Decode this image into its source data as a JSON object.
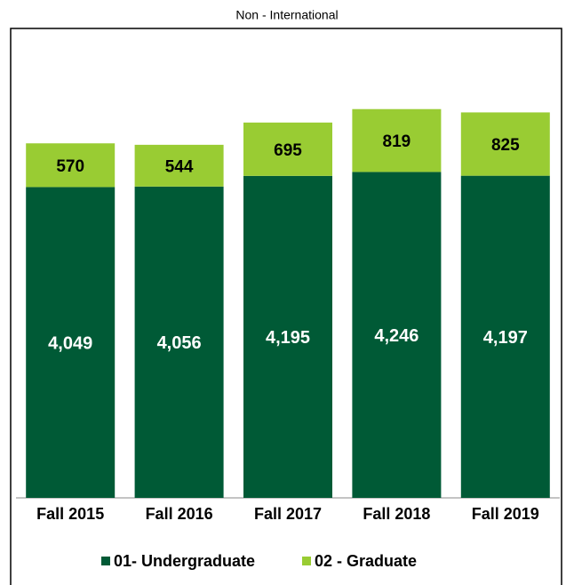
{
  "chart_data": {
    "type": "stacked_bar",
    "title": "Non - International",
    "categories": [
      "Fall 2015",
      "Fall 2016",
      "Fall 2017",
      "Fall 2018",
      "Fall 2019"
    ],
    "series": [
      {
        "name": "01- Undergraduate",
        "color": "#005a36",
        "values": [
          4049,
          4056,
          4195,
          4246,
          4197
        ],
        "value_labels": [
          "4,049",
          "4,056",
          "4,195",
          "4,246",
          "4,197"
        ]
      },
      {
        "name": "02 - Graduate",
        "color": "#99cc33",
        "values": [
          570,
          544,
          695,
          819,
          825
        ],
        "value_labels": [
          "570",
          "544",
          "695",
          "819",
          "825"
        ]
      }
    ],
    "ylim": [
      0,
      6000
    ],
    "legend": "bottom"
  }
}
